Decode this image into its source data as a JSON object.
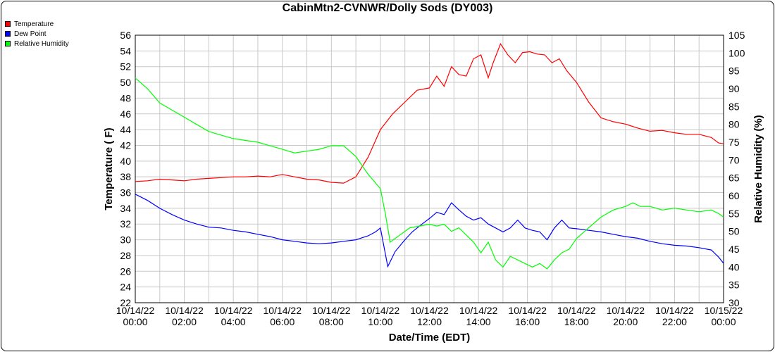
{
  "chart_data": {
    "type": "line",
    "title": "CabinMtn2-CVNWR/Dolly Sods (DY003)",
    "xlabel": "Date/Time (EDT)",
    "ylabel_left": "Temperature ( F)",
    "ylabel_right": "Relative Humidity (%)",
    "ylim_left": [
      22,
      56
    ],
    "ylim_right": [
      30,
      105
    ],
    "yticks_left": [
      "22",
      "24",
      "26",
      "28",
      "30",
      "32",
      "34",
      "36",
      "38",
      "40",
      "42",
      "44",
      "46",
      "48",
      "50",
      "52",
      "54",
      "56"
    ],
    "yticks_right": [
      "30",
      "35",
      "40",
      "45",
      "50",
      "55",
      "60",
      "65",
      "70",
      "75",
      "80",
      "85",
      "90",
      "95",
      "100",
      "105"
    ],
    "xlim_hours": [
      0,
      24
    ],
    "xticks": [
      {
        "hour": 0,
        "date": "10/14/22",
        "time": "00:00"
      },
      {
        "hour": 2,
        "date": "10/14/22",
        "time": "02:00"
      },
      {
        "hour": 4,
        "date": "10/14/22",
        "time": "04:00"
      },
      {
        "hour": 6,
        "date": "10/14/22",
        "time": "06:00"
      },
      {
        "hour": 8,
        "date": "10/14/22",
        "time": "08:00"
      },
      {
        "hour": 10,
        "date": "10/14/22",
        "time": "10:00"
      },
      {
        "hour": 12,
        "date": "10/14/22",
        "time": "12:00"
      },
      {
        "hour": 14,
        "date": "10/14/22",
        "time": "14:00"
      },
      {
        "hour": 16,
        "date": "10/14/22",
        "time": "16:00"
      },
      {
        "hour": 18,
        "date": "10/14/22",
        "time": "18:00"
      },
      {
        "hour": 20,
        "date": "10/14/22",
        "time": "20:00"
      },
      {
        "hour": 22,
        "date": "10/14/22",
        "time": "22:00"
      },
      {
        "hour": 24,
        "date": "10/15/22",
        "time": "00:00"
      }
    ],
    "grid": true,
    "legend_position": "top-left",
    "series": [
      {
        "name": "Temperature",
        "axis": "left",
        "color": "#ff0000",
        "points": [
          [
            0,
            37.4
          ],
          [
            0.5,
            37.5
          ],
          [
            1,
            37.7
          ],
          [
            1.5,
            37.6
          ],
          [
            2,
            37.5
          ],
          [
            2.5,
            37.7
          ],
          [
            3,
            37.8
          ],
          [
            3.5,
            37.9
          ],
          [
            4,
            38.0
          ],
          [
            4.5,
            38.0
          ],
          [
            5,
            38.1
          ],
          [
            5.5,
            38.0
          ],
          [
            6,
            38.3
          ],
          [
            6.5,
            38.0
          ],
          [
            7,
            37.7
          ],
          [
            7.5,
            37.6
          ],
          [
            8,
            37.3
          ],
          [
            8.5,
            37.2
          ],
          [
            9,
            38.0
          ],
          [
            9.5,
            40.5
          ],
          [
            10,
            44.0
          ],
          [
            10.5,
            46.0
          ],
          [
            11,
            47.5
          ],
          [
            11.5,
            49.0
          ],
          [
            12,
            49.3
          ],
          [
            12.3,
            50.8
          ],
          [
            12.6,
            49.5
          ],
          [
            12.9,
            52.0
          ],
          [
            13.2,
            51.0
          ],
          [
            13.5,
            50.8
          ],
          [
            13.8,
            53.0
          ],
          [
            14.1,
            53.5
          ],
          [
            14.4,
            50.6
          ],
          [
            14.6,
            52.5
          ],
          [
            14.9,
            54.9
          ],
          [
            15.2,
            53.5
          ],
          [
            15.5,
            52.5
          ],
          [
            15.8,
            53.8
          ],
          [
            16.1,
            53.9
          ],
          [
            16.4,
            53.6
          ],
          [
            16.7,
            53.5
          ],
          [
            17,
            52.5
          ],
          [
            17.3,
            53.0
          ],
          [
            17.6,
            51.5
          ],
          [
            18,
            50.0
          ],
          [
            18.5,
            47.5
          ],
          [
            19,
            45.5
          ],
          [
            19.5,
            45.0
          ],
          [
            20,
            44.7
          ],
          [
            20.5,
            44.2
          ],
          [
            21,
            43.8
          ],
          [
            21.5,
            43.9
          ],
          [
            22,
            43.6
          ],
          [
            22.5,
            43.4
          ],
          [
            23,
            43.4
          ],
          [
            23.5,
            43.0
          ],
          [
            23.8,
            42.3
          ],
          [
            24,
            42.2
          ]
        ]
      },
      {
        "name": "Dew Point",
        "axis": "left",
        "color": "#0000ff",
        "points": [
          [
            0,
            35.8
          ],
          [
            0.5,
            35.0
          ],
          [
            1,
            34.0
          ],
          [
            1.5,
            33.2
          ],
          [
            2,
            32.5
          ],
          [
            2.5,
            32.0
          ],
          [
            3,
            31.6
          ],
          [
            3.5,
            31.5
          ],
          [
            4,
            31.2
          ],
          [
            4.5,
            31.0
          ],
          [
            5,
            30.7
          ],
          [
            5.5,
            30.4
          ],
          [
            6,
            30.0
          ],
          [
            6.5,
            29.8
          ],
          [
            7,
            29.6
          ],
          [
            7.5,
            29.5
          ],
          [
            8,
            29.6
          ],
          [
            8.5,
            29.8
          ],
          [
            9,
            30.0
          ],
          [
            9.5,
            30.5
          ],
          [
            9.8,
            31.0
          ],
          [
            10,
            31.5
          ],
          [
            10.3,
            26.6
          ],
          [
            10.6,
            28.5
          ],
          [
            11,
            30.0
          ],
          [
            11.3,
            31.0
          ],
          [
            11.7,
            32.0
          ],
          [
            12,
            32.7
          ],
          [
            12.3,
            33.5
          ],
          [
            12.6,
            33.2
          ],
          [
            12.9,
            34.7
          ],
          [
            13.2,
            33.8
          ],
          [
            13.5,
            33.0
          ],
          [
            13.8,
            32.5
          ],
          [
            14.1,
            32.8
          ],
          [
            14.4,
            32.0
          ],
          [
            14.7,
            31.5
          ],
          [
            15,
            31.0
          ],
          [
            15.3,
            31.5
          ],
          [
            15.6,
            32.5
          ],
          [
            15.9,
            31.5
          ],
          [
            16.2,
            31.2
          ],
          [
            16.5,
            31.0
          ],
          [
            16.8,
            30.0
          ],
          [
            17.1,
            31.5
          ],
          [
            17.4,
            32.5
          ],
          [
            17.7,
            31.5
          ],
          [
            18,
            31.4
          ],
          [
            18.5,
            31.2
          ],
          [
            19,
            31.0
          ],
          [
            19.5,
            30.7
          ],
          [
            20,
            30.4
          ],
          [
            20.5,
            30.2
          ],
          [
            21,
            29.8
          ],
          [
            21.5,
            29.5
          ],
          [
            22,
            29.3
          ],
          [
            22.5,
            29.2
          ],
          [
            23,
            29.0
          ],
          [
            23.5,
            28.7
          ],
          [
            23.8,
            27.8
          ],
          [
            24,
            27.0
          ]
        ]
      },
      {
        "name": "Relative Humidity",
        "axis": "right",
        "color": "#00ff00",
        "points": [
          [
            0,
            93
          ],
          [
            0.5,
            90
          ],
          [
            1,
            86
          ],
          [
            1.5,
            84
          ],
          [
            2,
            82
          ],
          [
            2.5,
            80
          ],
          [
            3,
            78
          ],
          [
            3.5,
            77
          ],
          [
            4,
            76
          ],
          [
            4.5,
            75.5
          ],
          [
            5,
            75
          ],
          [
            5.5,
            74
          ],
          [
            6,
            73
          ],
          [
            6.5,
            72
          ],
          [
            7,
            72.5
          ],
          [
            7.5,
            73
          ],
          [
            8,
            74
          ],
          [
            8.5,
            74
          ],
          [
            9,
            71
          ],
          [
            9.5,
            66
          ],
          [
            10,
            62
          ],
          [
            10.2,
            55
          ],
          [
            10.4,
            47
          ],
          [
            10.8,
            49
          ],
          [
            11.2,
            51
          ],
          [
            11.6,
            51.5
          ],
          [
            12,
            52
          ],
          [
            12.3,
            51.5
          ],
          [
            12.6,
            52
          ],
          [
            12.9,
            50
          ],
          [
            13.2,
            51
          ],
          [
            13.5,
            49
          ],
          [
            13.8,
            47
          ],
          [
            14.1,
            44
          ],
          [
            14.4,
            47
          ],
          [
            14.7,
            42
          ],
          [
            15,
            40
          ],
          [
            15.3,
            43
          ],
          [
            15.6,
            42
          ],
          [
            15.9,
            41
          ],
          [
            16.2,
            40
          ],
          [
            16.5,
            41
          ],
          [
            16.8,
            39.5
          ],
          [
            17.1,
            42
          ],
          [
            17.4,
            44
          ],
          [
            17.7,
            45
          ],
          [
            18,
            48
          ],
          [
            18.5,
            51
          ],
          [
            19,
            54
          ],
          [
            19.5,
            56
          ],
          [
            20,
            57
          ],
          [
            20.3,
            58
          ],
          [
            20.6,
            57
          ],
          [
            21,
            57
          ],
          [
            21.5,
            56
          ],
          [
            22,
            56.5
          ],
          [
            22.5,
            56
          ],
          [
            23,
            55.5
          ],
          [
            23.5,
            56
          ],
          [
            23.8,
            55
          ],
          [
            24,
            54
          ]
        ]
      }
    ]
  }
}
